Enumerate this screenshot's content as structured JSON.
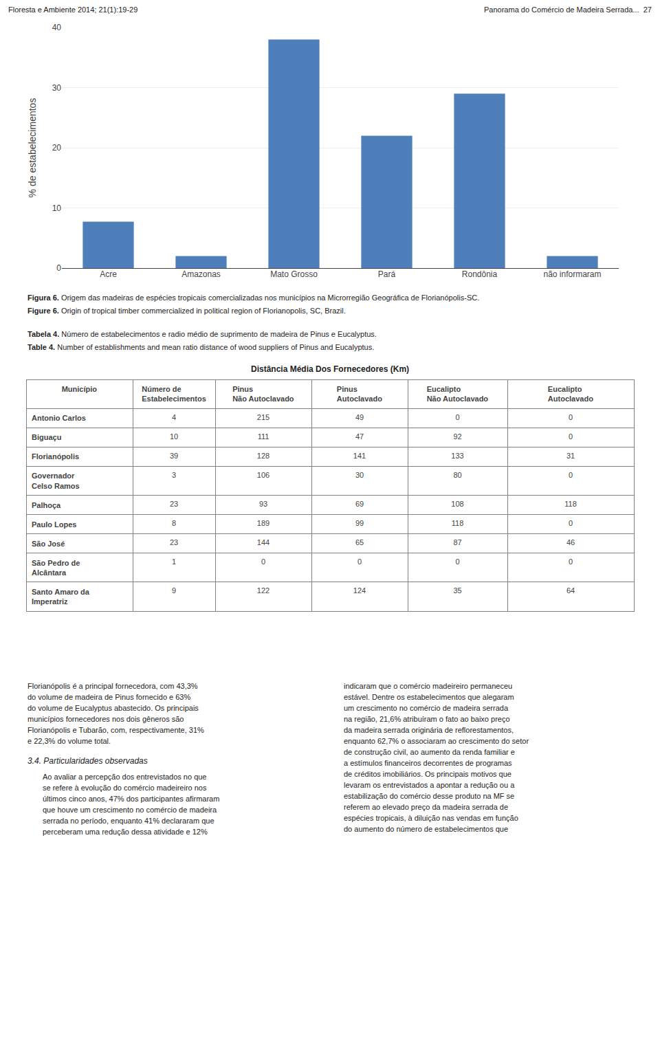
{
  "chart_data": [
    {
      "type": "bar",
      "annotations": [
        "Floresta e Ambiente 2014; 21(1):19-29",
        "Panorama do Comércio de Madeira Serrada...  27",
        "Figura 6. Origem das madeiras de espécies tropicais comercializadas nos municípios na Microrregião Geográfica de Florianópolis-SC.",
        "Figure 6. Origin of tropical timber commercialized in political region of Florianopolis, SC, Brazil."
      ],
      "categories": [
        "Acre",
        "Amazonas",
        "Mato Grosso",
        "Pará",
        "Rondônia",
        "não informaram"
      ],
      "values": [
        7.7,
        2.0,
        38.0,
        22.0,
        29.0,
        2.0
      ],
      "color": "#4e7fba",
      "ylabel": "% de estabelecimentos",
      "ylim": [
        0,
        40
      ],
      "yticks": [
        0,
        10,
        20,
        30,
        40
      ],
      "grid": true
    },
    {
      "type": "table",
      "annotations": [
        "Tabela 4. Número de estabelecimentos e radio médio de suprimento de madeira de Pinus e Eucalyptus.",
        "Table 4. Number of establishments and mean ratio distance of wood suppliers of Pinus and Eucalyptus."
      ],
      "title": "Distância Média Dos Fornecedores (Km)",
      "columns": [
        "Município",
        "Número de\nEstabelecimentos",
        "Pinus\nNão Autoclavado",
        "Pinus\nAutoclavado",
        "Eucalipto\nNão Autoclavado",
        "Eucalipto\nAutoclavado"
      ],
      "rows": [
        [
          "Antonio Carlos",
          "4",
          "215",
          "49",
          "0",
          "0"
        ],
        [
          "Biguaçu",
          "10",
          "111",
          "47",
          "92",
          "0"
        ],
        [
          "Florianópolis",
          "39",
          "128",
          "141",
          "133",
          "31"
        ],
        [
          "Governador\nCelso Ramos",
          "3",
          "106",
          "30",
          "80",
          "0"
        ],
        [
          "Palhoça",
          "23",
          "93",
          "69",
          "108",
          "118"
        ],
        [
          "Paulo Lopes",
          "8",
          "189",
          "99",
          "118",
          "0"
        ],
        [
          "São José",
          "23",
          "144",
          "65",
          "87",
          "46"
        ],
        [
          "São Pedro de\nAlcântara",
          "1",
          "0",
          "0",
          "0",
          "0"
        ],
        [
          "Santo Amaro da\nImperatriz",
          "9",
          "122",
          "124",
          "35",
          "64"
        ]
      ]
    },
    {
      "type": "text",
      "title": "3.4. Particularidades observadas",
      "columns": [
        [
          "Florianópolis é a principal fornecedora, com 43,3%",
          "do volume de madeira de Pinus fornecido e 63%",
          "do volume de Eucalyptus abastecido. Os principais",
          "municípios fornecedores nos dois gêneros são",
          "Florianópolis e Tubarão, com, respectivamente, 31%",
          "e 22,3% do volume total."
        ],
        [
          "Ao avaliar a percepção dos entrevistados no que",
          "se refere à evolução do comércio madeireiro nos",
          "últimos cinco anos, 47% dos participantes afirmaram",
          "que houve um crescimento no comércio de madeira",
          "serrada no período, enquanto 41% declararam que",
          "perceberam uma redução dessa atividade e 12%"
        ],
        [
          "indicaram que o comércio madeireiro permaneceu",
          "estável. Dentre os estabelecimentos que alegaram",
          "um crescimento no comércio de madeira serrada",
          "na região, 21,6% atribuíram o fato ao baixo preço",
          "da madeira serrada originária de reflorestamentos,",
          "enquanto 62,7% o associaram ao crescimento do setor",
          "de construção civil, ao aumento da renda familiar e",
          "a estímulos financeiros decorrentes de programas",
          "de créditos imobiliários. Os principais motivos que",
          "levaram os entrevistados a apontar a redução ou a",
          "estabilização do comércio desse produto na MF se",
          "referem ao elevado preço da madeira serrada de",
          "espécies tropicais, à diluição nas vendas em função",
          "do aumento do número de estabelecimentos que"
        ]
      ]
    }
  ]
}
